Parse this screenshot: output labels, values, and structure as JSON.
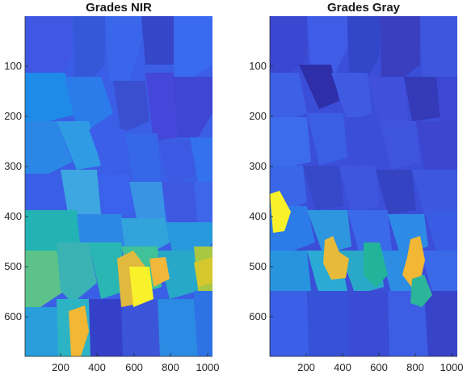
{
  "chart_data": [
    {
      "type": "heatmap",
      "title": "Grades NIR",
      "xlabel": "",
      "ylabel": "",
      "xlim": [
        1,
        1024
      ],
      "ylim": [
        1,
        680
      ],
      "y_reversed": true,
      "colormap": "parula",
      "xticks": [
        200,
        400,
        600,
        800,
        1000
      ],
      "yticks": [
        100,
        200,
        300,
        400,
        500,
        600
      ],
      "description": "segmented grain map; blue upper region, green/teal lower band rows ~390-590, yellow region near x 600-700 y 500-580",
      "regions": [
        {
          "x": [
            1,
            1024
          ],
          "y": [
            1,
            680
          ],
          "color": "#3A5FE6"
        },
        {
          "x": [
            1,
            1024
          ],
          "y": [
            390,
            600
          ],
          "color": "#2FB6A8"
        },
        {
          "x": [
            620,
            700
          ],
          "y": [
            500,
            580
          ],
          "color": "#F9F12A"
        },
        {
          "x": [
            240,
            300
          ],
          "y": [
            590,
            680
          ],
          "color": "#F2B735"
        }
      ]
    },
    {
      "type": "heatmap",
      "title": "Grades Gray",
      "xlabel": "",
      "ylabel": "",
      "xlim": [
        1,
        1024
      ],
      "ylim": [
        1,
        680
      ],
      "y_reversed": true,
      "colormap": "parula",
      "xticks": [
        200,
        400,
        600,
        800,
        1000
      ],
      "yticks": [
        100,
        200,
        300,
        400,
        500,
        600
      ],
      "description": "segmented grain map; mostly blue/violet, teal band rows ~400-580, yellow patches near x 0-60 y 370-420, x 330-420 y 460-510, x 780-870 y 450-550",
      "regions": [
        {
          "x": [
            1,
            1024
          ],
          "y": [
            1,
            680
          ],
          "color": "#3B4ED8"
        },
        {
          "x": [
            1,
            1024
          ],
          "y": [
            400,
            580
          ],
          "color": "#2A9BD8"
        },
        {
          "x": [
            1,
            60
          ],
          "y": [
            370,
            420
          ],
          "color": "#F9F12A"
        },
        {
          "x": [
            330,
            420
          ],
          "y": [
            460,
            510
          ],
          "color": "#E7BA3A"
        },
        {
          "x": [
            780,
            870
          ],
          "y": [
            450,
            550
          ],
          "color": "#F2B735"
        }
      ]
    }
  ]
}
